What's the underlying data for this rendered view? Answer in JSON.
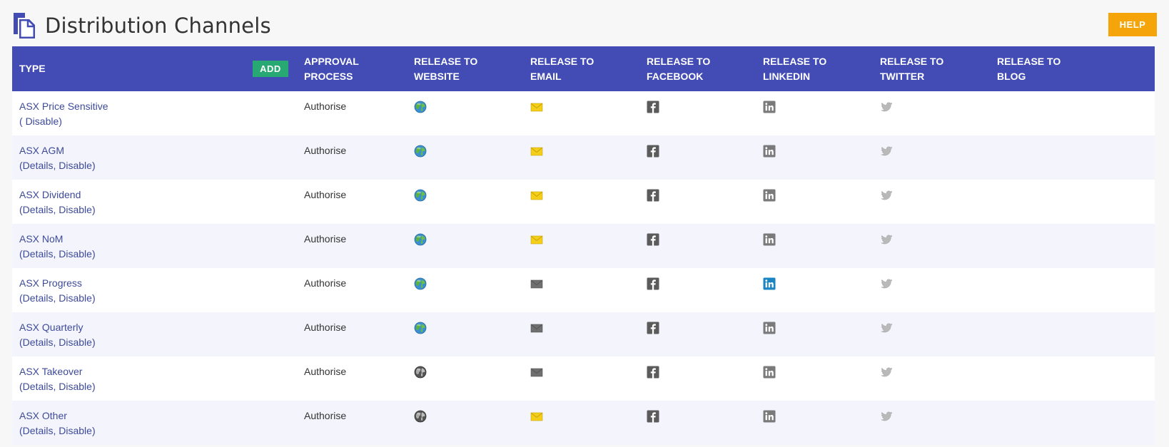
{
  "page": {
    "title": "Distribution Channels",
    "help_label": "HELP"
  },
  "table": {
    "headers": {
      "type": "TYPE",
      "add": "ADD",
      "approval": [
        "APPROVAL",
        "PROCESS"
      ],
      "website": [
        "RELEASE TO",
        "WEBSITE"
      ],
      "email": [
        "RELEASE TO",
        "EMAIL"
      ],
      "facebook": [
        "RELEASE TO",
        "FACEBOOK"
      ],
      "linkedin": [
        "RELEASE TO",
        "LINKEDIN"
      ],
      "twitter": [
        "RELEASE TO",
        "TWITTER"
      ],
      "blog": [
        "RELEASE TO",
        "BLOG"
      ]
    },
    "rows": [
      {
        "type": "ASX Price Sensitive",
        "open": "(",
        "details": "",
        "sep": " ",
        "disable": "Disable",
        "close": ")",
        "approval": "Authorise",
        "website": "enabled",
        "email": "enabled",
        "facebook": "disabled",
        "linkedin": "disabled",
        "twitter": "disabled"
      },
      {
        "type": "ASX AGM",
        "open": "(",
        "details": "Details",
        "sep": ", ",
        "disable": "Disable",
        "close": ")",
        "approval": "Authorise",
        "website": "enabled",
        "email": "enabled",
        "facebook": "disabled",
        "linkedin": "disabled",
        "twitter": "disabled"
      },
      {
        "type": "ASX Dividend",
        "open": "(",
        "details": "Details",
        "sep": ", ",
        "disable": "Disable",
        "close": ")",
        "approval": "Authorise",
        "website": "enabled",
        "email": "enabled",
        "facebook": "disabled",
        "linkedin": "disabled",
        "twitter": "disabled"
      },
      {
        "type": "ASX NoM",
        "open": "(",
        "details": "Details",
        "sep": ", ",
        "disable": "Disable",
        "close": ")",
        "approval": "Authorise",
        "website": "enabled",
        "email": "enabled",
        "facebook": "disabled",
        "linkedin": "disabled",
        "twitter": "disabled"
      },
      {
        "type": "ASX Progress",
        "open": "(",
        "details": "Details",
        "sep": ", ",
        "disable": "Disable",
        "close": ")",
        "approval": "Authorise",
        "website": "enabled",
        "email": "disabled",
        "facebook": "disabled",
        "linkedin": "enabled",
        "twitter": "disabled"
      },
      {
        "type": "ASX Quarterly",
        "open": "(",
        "details": "Details",
        "sep": ", ",
        "disable": "Disable",
        "close": ")",
        "approval": "Authorise",
        "website": "enabled",
        "email": "disabled",
        "facebook": "disabled",
        "linkedin": "disabled",
        "twitter": "disabled"
      },
      {
        "type": "ASX Takeover",
        "open": "(",
        "details": "Details",
        "sep": ", ",
        "disable": "Disable",
        "close": ")",
        "approval": "Authorise",
        "website": "disabled",
        "email": "disabled",
        "facebook": "disabled",
        "linkedin": "disabled",
        "twitter": "disabled"
      },
      {
        "type": "ASX Other",
        "open": "(",
        "details": "Details",
        "sep": ", ",
        "disable": "Disable",
        "close": ")",
        "approval": "Authorise",
        "website": "disabled",
        "email": "enabled",
        "facebook": "disabled",
        "linkedin": "disabled",
        "twitter": "disabled"
      }
    ]
  },
  "icons": {
    "page": "documents-icon",
    "website": "globe-icon",
    "email": "envelope-icon",
    "facebook": "facebook-icon",
    "linkedin": "linkedin-icon",
    "twitter": "twitter-icon"
  },
  "colors": {
    "header_bg": "#424cb4",
    "help": "#f5a50a",
    "add": "#28a873",
    "link": "#3d4a9a",
    "email_enabled": "#f4cf1a",
    "linkedin_enabled": "#1a85c2"
  }
}
